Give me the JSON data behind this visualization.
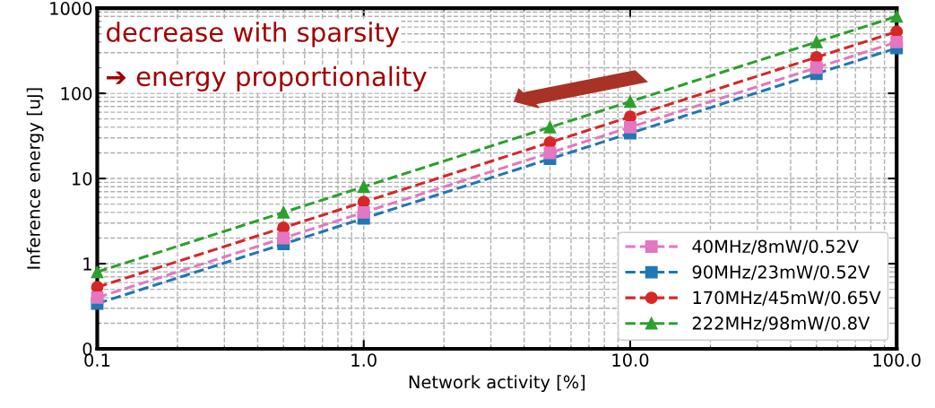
{
  "chart_data": {
    "type": "line",
    "xlabel": "Network activity [%]",
    "ylabel": "Inference energy [uJ]",
    "log": "xy",
    "x": [
      0.1,
      0.5,
      1,
      5,
      10,
      50,
      100
    ],
    "series": [
      {
        "name": "40MHz/8mW/0.52V",
        "color": "#e377c2",
        "marker": "square",
        "values": [
          0.4,
          2,
          4,
          20,
          40,
          200,
          400
        ]
      },
      {
        "name": "90MHz/23mW/0.52V",
        "color": "#1f77b4",
        "marker": "square",
        "values": [
          0.34,
          1.7,
          3.4,
          17,
          34,
          170,
          340
        ]
      },
      {
        "name": "170MHz/45mW/0.65V",
        "color": "#d62728",
        "marker": "circle",
        "values": [
          0.53,
          2.65,
          5.3,
          26.5,
          53,
          265,
          530
        ]
      },
      {
        "name": "222MHz/98mW/0.8V",
        "color": "#2ca02c",
        "marker": "triangle",
        "values": [
          0.8,
          4,
          8,
          40,
          80,
          400,
          800
        ]
      }
    ],
    "line_style": "dashed",
    "grid": true,
    "legend": "bottom right",
    "xlim": [
      0.1,
      100
    ],
    "xticks": [
      0.1,
      {
        "value": 1,
        "label": "1.0"
      },
      {
        "value": 10,
        "label": "10.0"
      },
      {
        "value": 100,
        "label": "100.0"
      }
    ],
    "ylim": [
      0.1,
      1000
    ],
    "yticks": [
      {
        "value": 0.1,
        "label": "0"
      },
      1,
      10,
      100,
      1000
    ],
    "annotations": [
      "decrease with sparsity",
      "➔ energy proportionality"
    ]
  }
}
